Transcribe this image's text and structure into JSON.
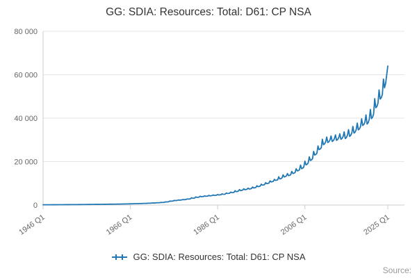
{
  "chart": {
    "title": "GG: SDIA: Resources: Total: D61: CP NSA"
  },
  "legend": {
    "label": "GG: SDIA: Resources: Total: D61: CP NSA"
  },
  "footer": {
    "source": "Source:"
  },
  "chart_data": {
    "type": "line",
    "title": "GG: SDIA: Resources: Total: D61: CP NSA",
    "series_name": "GG: SDIA: Resources: Total: D61: CP NSA",
    "color": "#1f77b4",
    "grid_color": "#e6e6e6",
    "axis_color": "#cccccc",
    "tick_label_color": "#666666",
    "x_unit": "quarter",
    "x_start": "1946 Q1",
    "x_end": "2025 Q1",
    "ylim": [
      0,
      80000
    ],
    "grid": "horizontal",
    "legend_position": "bottom",
    "y_ticks": [
      {
        "label": "0",
        "value": 0
      },
      {
        "label": "20 000",
        "value": 20000
      },
      {
        "label": "40 000",
        "value": 40000
      },
      {
        "label": "60 000",
        "value": 60000
      },
      {
        "label": "80 000",
        "value": 80000
      }
    ],
    "x_ticks": [
      {
        "label": "1946 Q1",
        "index": 0
      },
      {
        "label": "1966 Q1",
        "index": 80
      },
      {
        "label": "1986 Q1",
        "index": 160
      },
      {
        "label": "2006 Q1",
        "index": 240
      },
      {
        "label": "2025 Q1",
        "index": 316
      }
    ],
    "values": [
      120,
      118,
      119,
      122,
      130,
      128,
      129,
      132,
      140,
      138,
      139,
      142,
      150,
      148,
      149,
      152,
      160,
      158,
      159,
      163,
      175,
      172,
      174,
      178,
      190,
      187,
      189,
      193,
      205,
      202,
      204,
      208,
      220,
      217,
      219,
      224,
      240,
      236,
      238,
      244,
      260,
      256,
      258,
      264,
      280,
      276,
      278,
      284,
      300,
      296,
      298,
      305,
      325,
      320,
      323,
      330,
      350,
      345,
      348,
      356,
      380,
      374,
      378,
      386,
      410,
      404,
      408,
      417,
      445,
      438,
      442,
      452,
      480,
      473,
      477,
      488,
      530,
      522,
      527,
      539,
      580,
      571,
      576,
      590,
      640,
      630,
      636,
      651,
      700,
      689,
      695,
      712,
      770,
      758,
      765,
      783,
      850,
      837,
      845,
      865,
      950,
      935,
      944,
      966,
      1050,
      1034,
      1043,
      1068,
      1200,
      1181,
      1192,
      1221,
      1450,
      1427,
      1440,
      1475,
      1800,
      1772,
      1788,
      1831,
      2100,
      2067,
      2086,
      2136,
      2300,
      2264,
      2284,
      2340,
      2500,
      2461,
      2483,
      2543,
      2800,
      2756,
      2781,
      2848,
      3350,
      3125,
      3170,
      3245,
      3750,
      3525,
      3570,
      3645,
      4050,
      3825,
      3870,
      3945,
      4250,
      4025,
      4070,
      4145,
      4450,
      4225,
      4270,
      4345,
      4650,
      4425,
      4470,
      4545,
      4850,
      4625,
      4670,
      4745,
      5150,
      4925,
      4970,
      5045,
      5550,
      5325,
      5370,
      5445,
      5950,
      5725,
      5770,
      5845,
      6600,
      6150,
      6240,
      6390,
      7100,
      6650,
      6740,
      6890,
      7500,
      7050,
      7140,
      7290,
      7800,
      7350,
      7440,
      7590,
      8300,
      7850,
      7940,
      8090,
      8900,
      8450,
      8540,
      8690,
      9600,
      9150,
      9240,
      9390,
      10300,
      9850,
      9940,
      10090,
      11100,
      10650,
      10740,
      10890,
      11800,
      11350,
      11440,
      11590,
      13000,
      12020,
      12160,
      12510,
      13900,
      12920,
      13060,
      13410,
      14500,
      13520,
      13660,
      14010,
      15500,
      14520,
      14660,
      15010,
      16700,
      15720,
      15860,
      16210,
      18400,
      16720,
      16960,
      17560,
      20200,
      18520,
      18760,
      19360,
      22200,
      20520,
      20760,
      21360,
      24700,
      23020,
      23260,
      23860,
      27200,
      25520,
      25760,
      26360,
      30300,
      27780,
      28140,
      29040,
      31300,
      28780,
      29140,
      30040,
      31800,
      29280,
      29640,
      30540,
      32300,
      29780,
      30140,
      31040,
      32800,
      30280,
      30640,
      31540,
      33700,
      30620,
      31060,
      32160,
      34700,
      31620,
      32060,
      33160,
      36200,
      33120,
      33560,
      34660,
      37700,
      34620,
      35060,
      36160,
      39700,
      36620,
      37060,
      38160,
      41500,
      37300,
      37900,
      39400,
      44000,
      39800,
      40400,
      41900,
      49000,
      44800,
      45400,
      46900,
      53000,
      48800,
      49400,
      50900,
      58000,
      54000,
      56000,
      60000,
      64000
    ]
  }
}
